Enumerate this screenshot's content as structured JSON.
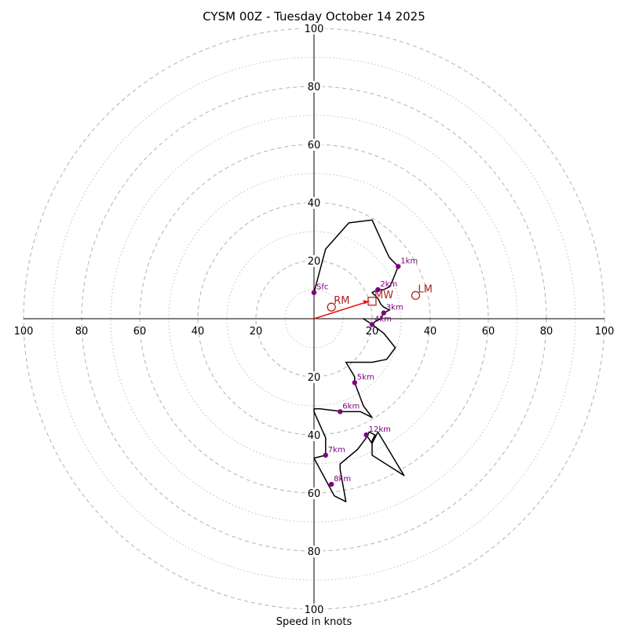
{
  "chart_data": {
    "type": "hodograph",
    "title": "CYSM 00Z - Tuesday October 14 2025",
    "xlabel": "Speed in knots",
    "ring_max": 100,
    "ring_step": 20,
    "tick_labels": [
      "20",
      "40",
      "60",
      "80",
      "100"
    ],
    "colors": {
      "trace": "#000000",
      "height_marker": "#800080",
      "motion": "#b22222",
      "mean_wind_arrow": "#ee1111",
      "grid": "#b8b8b8"
    },
    "trace": [
      [
        0,
        9
      ],
      [
        4,
        24
      ],
      [
        12,
        33
      ],
      [
        20,
        34
      ],
      [
        25,
        23
      ],
      [
        26,
        21
      ],
      [
        29,
        18
      ],
      [
        27,
        13
      ],
      [
        26,
        11
      ],
      [
        24,
        10
      ],
      [
        22,
        10
      ],
      [
        20,
        9
      ],
      [
        22,
        7
      ],
      [
        23,
        5
      ],
      [
        24,
        4
      ],
      [
        26,
        3
      ],
      [
        24,
        2
      ],
      [
        23,
        0
      ],
      [
        21,
        -1
      ],
      [
        20,
        -2
      ],
      [
        17,
        0
      ],
      [
        20,
        -2
      ],
      [
        24,
        -5
      ],
      [
        28,
        -10
      ],
      [
        25,
        -14
      ],
      [
        20,
        -15
      ],
      [
        11,
        -15
      ],
      [
        14,
        -20
      ],
      [
        14,
        -22
      ],
      [
        17,
        -30
      ],
      [
        20,
        -34
      ],
      [
        16,
        -32
      ],
      [
        10,
        -32
      ],
      [
        2,
        -31
      ],
      [
        0,
        -31
      ],
      [
        0,
        -32
      ],
      [
        4,
        -41
      ],
      [
        4,
        -47
      ],
      [
        0,
        -48
      ],
      [
        7,
        -61
      ],
      [
        11,
        -63
      ],
      [
        9,
        -52
      ],
      [
        9,
        -50
      ],
      [
        15,
        -45
      ],
      [
        18,
        -41
      ],
      [
        19,
        -39
      ],
      [
        21,
        -40
      ],
      [
        20,
        -42
      ],
      [
        20,
        -47
      ],
      [
        31,
        -54
      ],
      [
        22,
        -39
      ],
      [
        20,
        -43
      ],
      [
        18,
        -40
      ]
    ],
    "height_points": [
      {
        "label": "Sfc",
        "u": 0,
        "v": 9
      },
      {
        "label": "1km",
        "u": 29,
        "v": 18
      },
      {
        "label": "2km",
        "u": 22,
        "v": 10
      },
      {
        "label": "3km",
        "u": 24,
        "v": 2
      },
      {
        "label": "4km",
        "u": 20,
        "v": -2
      },
      {
        "label": "5km",
        "u": 14,
        "v": -22
      },
      {
        "label": "6km",
        "u": 9,
        "v": -32
      },
      {
        "label": "7km",
        "u": 4,
        "v": -47
      },
      {
        "label": "8km",
        "u": 6,
        "v": -57
      },
      {
        "label": "12km",
        "u": 18,
        "v": -40
      }
    ],
    "storm_motion": [
      {
        "label": "RM",
        "u": 6,
        "v": 4,
        "marker": "circle"
      },
      {
        "label": "LM",
        "u": 35,
        "v": 8,
        "marker": "circle"
      },
      {
        "label": "MW",
        "u": 20,
        "v": 6,
        "marker": "square"
      }
    ],
    "mean_wind_vector": {
      "u": 19,
      "v": 6
    }
  }
}
